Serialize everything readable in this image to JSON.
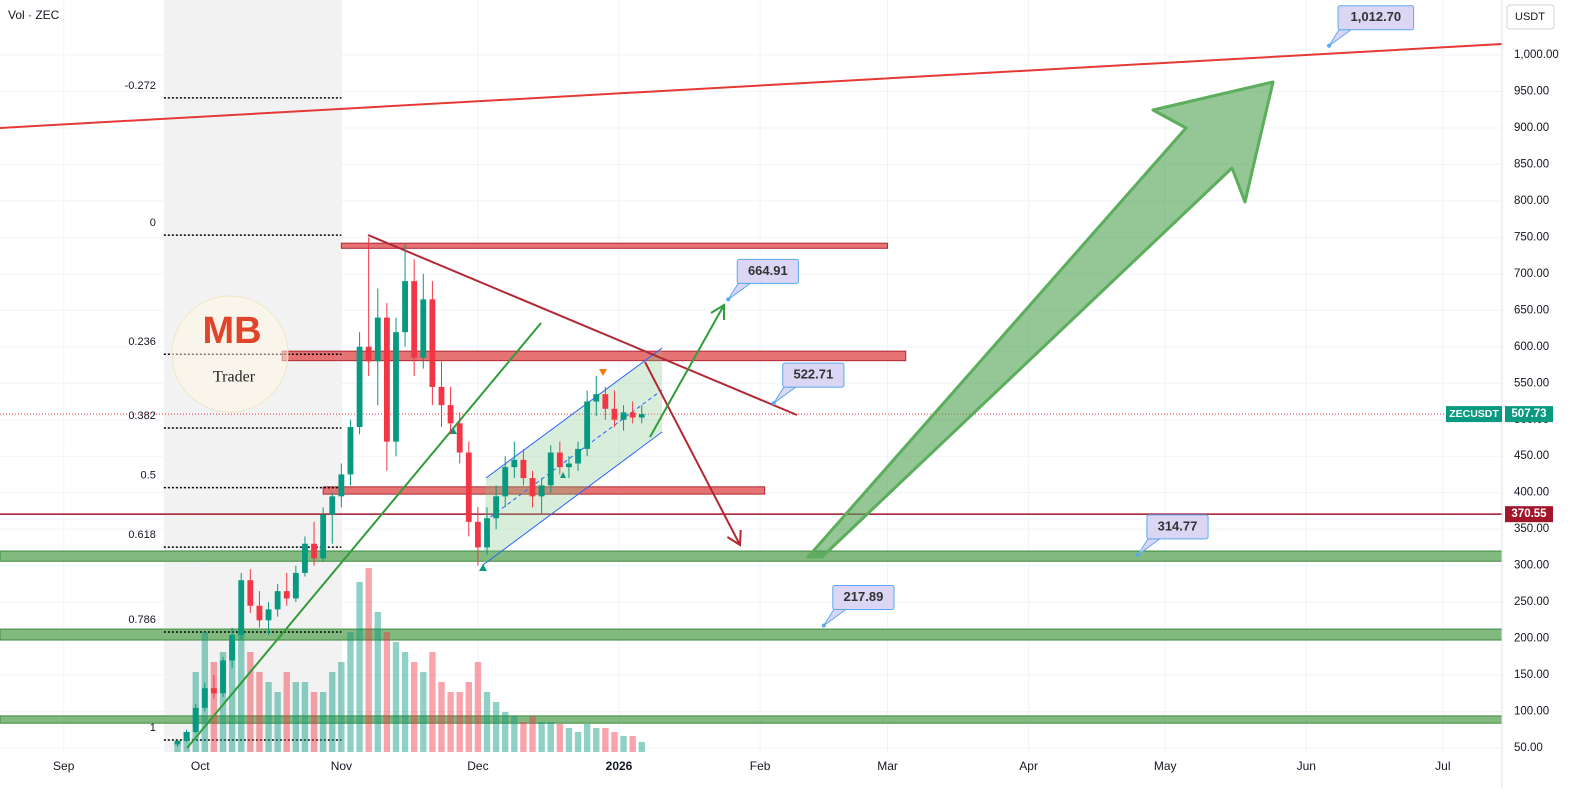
{
  "chart_data": {
    "type": "candlestick",
    "volume_label": "Vol · ZEC",
    "y_unit": "USDT",
    "x": [
      25,
      27,
      29,
      31,
      33,
      35,
      37,
      39,
      41,
      43,
      45,
      47,
      49,
      51,
      53,
      55,
      57,
      59,
      61,
      63,
      65,
      67,
      69,
      71,
      73,
      75,
      77,
      79,
      81,
      83,
      85,
      87,
      89,
      91,
      93,
      95,
      97,
      99,
      101,
      103,
      105,
      107,
      109,
      111,
      113,
      115,
      117,
      119,
      121,
      123,
      125,
      127
    ],
    "open": [
      55,
      60,
      72,
      105,
      132,
      125,
      170,
      205,
      280,
      245,
      225,
      240,
      265,
      255,
      290,
      330,
      310,
      370,
      395,
      425,
      490,
      600,
      580,
      640,
      470,
      620,
      690,
      585,
      665,
      545,
      520,
      495,
      455,
      360,
      325,
      365,
      395,
      435,
      445,
      420,
      395,
      410,
      455,
      435,
      440,
      460,
      525,
      535,
      515,
      500,
      510,
      503
    ],
    "high": [
      62,
      75,
      110,
      140,
      150,
      175,
      215,
      290,
      295,
      265,
      250,
      275,
      290,
      300,
      340,
      360,
      380,
      400,
      440,
      500,
      620,
      750,
      680,
      660,
      640,
      740,
      720,
      700,
      690,
      580,
      545,
      510,
      470,
      380,
      380,
      410,
      450,
      470,
      460,
      430,
      420,
      465,
      470,
      450,
      470,
      540,
      560,
      545,
      540,
      520,
      525,
      520
    ],
    "low": [
      52,
      58,
      70,
      100,
      118,
      120,
      160,
      200,
      235,
      215,
      205,
      230,
      245,
      250,
      285,
      300,
      305,
      330,
      380,
      410,
      480,
      560,
      520,
      430,
      450,
      600,
      560,
      570,
      520,
      490,
      480,
      440,
      340,
      300,
      315,
      350,
      380,
      420,
      410,
      380,
      370,
      400,
      425,
      420,
      430,
      450,
      505,
      500,
      490,
      485,
      495,
      495
    ],
    "close": [
      60,
      72,
      105,
      132,
      125,
      170,
      205,
      280,
      245,
      225,
      240,
      265,
      255,
      290,
      330,
      310,
      370,
      395,
      425,
      490,
      600,
      580,
      640,
      470,
      620,
      690,
      585,
      665,
      545,
      520,
      495,
      455,
      360,
      325,
      365,
      395,
      435,
      445,
      420,
      395,
      410,
      455,
      435,
      440,
      460,
      525,
      535,
      515,
      500,
      510,
      503,
      507.73
    ],
    "volume": [
      5,
      10,
      40,
      60,
      45,
      50,
      55,
      60,
      50,
      40,
      35,
      30,
      40,
      35,
      35,
      30,
      30,
      40,
      45,
      60,
      85,
      92,
      70,
      60,
      55,
      50,
      45,
      40,
      50,
      35,
      30,
      30,
      35,
      45,
      30,
      25,
      20,
      18,
      15,
      18,
      15,
      15,
      14,
      12,
      10,
      14,
      12,
      12,
      10,
      8,
      8,
      5
    ],
    "volume_lim": [
      0,
      100
    ],
    "up_color": "#089981",
    "down_color": "#f23645",
    "xlim": [
      -14,
      316
    ],
    "xticks": [
      {
        "value": 0,
        "label": "Sep"
      },
      {
        "value": 30,
        "label": "Oct"
      },
      {
        "value": 61,
        "label": "Nov"
      },
      {
        "value": 91,
        "label": "Dec"
      },
      {
        "value": 122,
        "label": "2026"
      },
      {
        "value": 153,
        "label": "Feb"
      },
      {
        "value": 181,
        "label": "Mar"
      },
      {
        "value": 212,
        "label": "Apr"
      },
      {
        "value": 242,
        "label": "May"
      },
      {
        "value": 273,
        "label": "Jun"
      },
      {
        "value": 303,
        "label": "Jul"
      }
    ],
    "ylim": [
      44.5,
      1075.4
    ],
    "yticks": [
      {
        "value": 1000,
        "label": "1,000.00"
      },
      {
        "value": 950,
        "label": "950.00"
      },
      {
        "value": 900,
        "label": "900.00"
      },
      {
        "value": 850,
        "label": "850.00"
      },
      {
        "value": 800,
        "label": "800.00"
      },
      {
        "value": 750,
        "label": "750.00"
      },
      {
        "value": 700,
        "label": "700.00"
      },
      {
        "value": 650,
        "label": "650.00"
      },
      {
        "value": 600,
        "label": "600.00"
      },
      {
        "value": 550,
        "label": "550.00"
      },
      {
        "value": 500,
        "label": "500.00"
      },
      {
        "value": 450,
        "label": "450.00"
      },
      {
        "value": 400,
        "label": "400.00"
      },
      {
        "value": 350,
        "label": "350.00"
      },
      {
        "value": 300,
        "label": "300.00"
      },
      {
        "value": 250,
        "label": "250.00"
      },
      {
        "value": 200,
        "label": "200.00"
      },
      {
        "value": 150,
        "label": "150.00"
      },
      {
        "value": 100,
        "label": "100.00"
      },
      {
        "value": 50,
        "label": "50.00"
      }
    ],
    "grid": true,
    "fib": {
      "high": 753,
      "low": 61,
      "from": 22,
      "to": 61,
      "levels": [
        -0.272,
        0,
        0.236,
        0.382,
        0.5,
        0.618,
        0.786,
        1
      ]
    },
    "zones": [
      {
        "from": 61,
        "to": 181,
        "low": 735,
        "high": 742,
        "color": "#e57373"
      },
      {
        "from": 48,
        "to": 185,
        "low": 581,
        "high": 594,
        "color": "#e57373"
      },
      {
        "from": 57,
        "to": 154,
        "low": 398,
        "high": 408,
        "color": "#e57373"
      },
      {
        "from": -14,
        "to": 316,
        "low": 306,
        "high": 320,
        "color": "#81b97f"
      },
      {
        "from": -14,
        "to": 316,
        "low": 198,
        "high": 213,
        "color": "#81b97f"
      },
      {
        "from": -14,
        "to": 316,
        "low": 84,
        "high": 94,
        "color": "#81b97f"
      }
    ],
    "trend_line": {
      "x": [
        -14,
        316
      ],
      "values": [
        900,
        1015
      ],
      "color": "#e53935"
    },
    "resistance": {
      "value": 370.55,
      "color": "#a3152a"
    },
    "last_price": {
      "symbol": "ZECUSDT",
      "value": 507.73,
      "color": "#089981"
    },
    "targets": [
      {
        "x": 278,
        "value": 1012.7,
        "label": "1,012.70"
      },
      {
        "x": 146,
        "value": 664.91
      },
      {
        "x": 156,
        "value": 522.71
      },
      {
        "x": 236,
        "value": 314.77
      },
      {
        "x": 167,
        "value": 217.89
      }
    ]
  },
  "logo": {
    "top": "MB",
    "bottom": "Trader"
  }
}
